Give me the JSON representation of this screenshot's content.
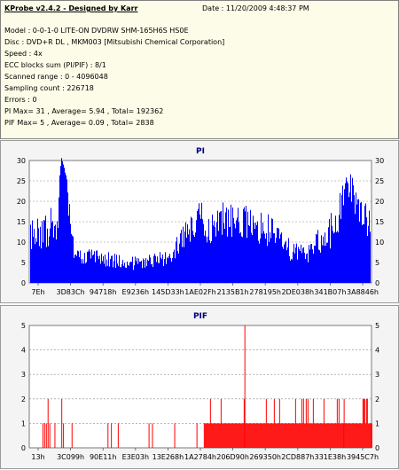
{
  "header": {
    "title": "KProbe v2.4.2 - Designed by Karr",
    "date": "Date : 11/20/2009 4:48:37 PM",
    "lines": [
      "Model : 0-0-1-0 LITE-ON DVDRW SHM-165H6S HS0E",
      "Disc : DVD+R DL , MKM003 [Mitsubishi Chemical Corporation]",
      "Speed : 4x",
      "ECC blocks sum (PI/PIF) : 8/1",
      "Scanned range : 0 - 4096048",
      "Sampling count : 226718",
      "Errors : 0",
      "PI Max= 31 , Average= 5.94 , Total= 192362",
      "PIF Max= 5 , Average= 0.09 , Total= 2838"
    ]
  },
  "colors": {
    "pi": "#0000ff",
    "pif": "#ff0000",
    "title": "#000080",
    "grid": "#8a8a8a",
    "background": "#ffffff"
  },
  "chart_data": [
    {
      "type": "bar",
      "title": "PI",
      "ylim": [
        0,
        30
      ],
      "y_ticks": [
        "0",
        "5",
        "10",
        "15",
        "20",
        "25",
        "30"
      ],
      "x_tick_labels": [
        "7Eh",
        "3D83Ch",
        "94718h",
        "E9236h",
        "145D33h",
        "1AE02Fh",
        "2135B1h",
        "278195h",
        "2DE038h",
        "341B07h",
        "3A8846h"
      ],
      "profile": [
        [
          0.0,
          11,
          4
        ],
        [
          0.08,
          15,
          5
        ],
        [
          0.09,
          31,
          0
        ],
        [
          0.1,
          28,
          0
        ],
        [
          0.11,
          22,
          4
        ],
        [
          0.12,
          14,
          4
        ],
        [
          0.13,
          7,
          2
        ],
        [
          0.2,
          6,
          2
        ],
        [
          0.3,
          5,
          2
        ],
        [
          0.4,
          6,
          2
        ],
        [
          0.43,
          9,
          3
        ],
        [
          0.48,
          14,
          4
        ],
        [
          0.5,
          17,
          4
        ],
        [
          0.52,
          13,
          4
        ],
        [
          0.55,
          15,
          5
        ],
        [
          0.6,
          16,
          5
        ],
        [
          0.65,
          14,
          4
        ],
        [
          0.7,
          13,
          4
        ],
        [
          0.75,
          9,
          3
        ],
        [
          0.8,
          7,
          3
        ],
        [
          0.85,
          10,
          4
        ],
        [
          0.9,
          14,
          5
        ],
        [
          0.92,
          20,
          5
        ],
        [
          0.93,
          26,
          0
        ],
        [
          0.94,
          23,
          4
        ],
        [
          0.97,
          18,
          5
        ],
        [
          1.0,
          14,
          4
        ]
      ],
      "max": 31
    },
    {
      "type": "bar",
      "title": "PIF",
      "ylim": [
        0,
        5
      ],
      "y_ticks": [
        "0",
        "1",
        "2",
        "3",
        "4",
        "5"
      ],
      "x_tick_labels": [
        "13h",
        "3C099h",
        "90E11h",
        "E3E03h",
        "13E268h",
        "1A2784h",
        "206D90h",
        "269350h",
        "2CD887h",
        "331E38h",
        "3945C7h"
      ],
      "spikes": [
        [
          0.04,
          1
        ],
        [
          0.045,
          1
        ],
        [
          0.05,
          1
        ],
        [
          0.055,
          2
        ],
        [
          0.06,
          1
        ],
        [
          0.075,
          1
        ],
        [
          0.095,
          2
        ],
        [
          0.1,
          1
        ],
        [
          0.125,
          1
        ],
        [
          0.23,
          1
        ],
        [
          0.24,
          1
        ],
        [
          0.26,
          1
        ],
        [
          0.35,
          1
        ],
        [
          0.36,
          1
        ],
        [
          0.425,
          1
        ],
        [
          0.49,
          1
        ],
        [
          0.63,
          5
        ],
        [
          0.92,
          2
        ]
      ],
      "dense_range": [
        0.51,
        1.0
      ],
      "dense_levels": [
        1,
        2
      ],
      "max": 5
    }
  ]
}
